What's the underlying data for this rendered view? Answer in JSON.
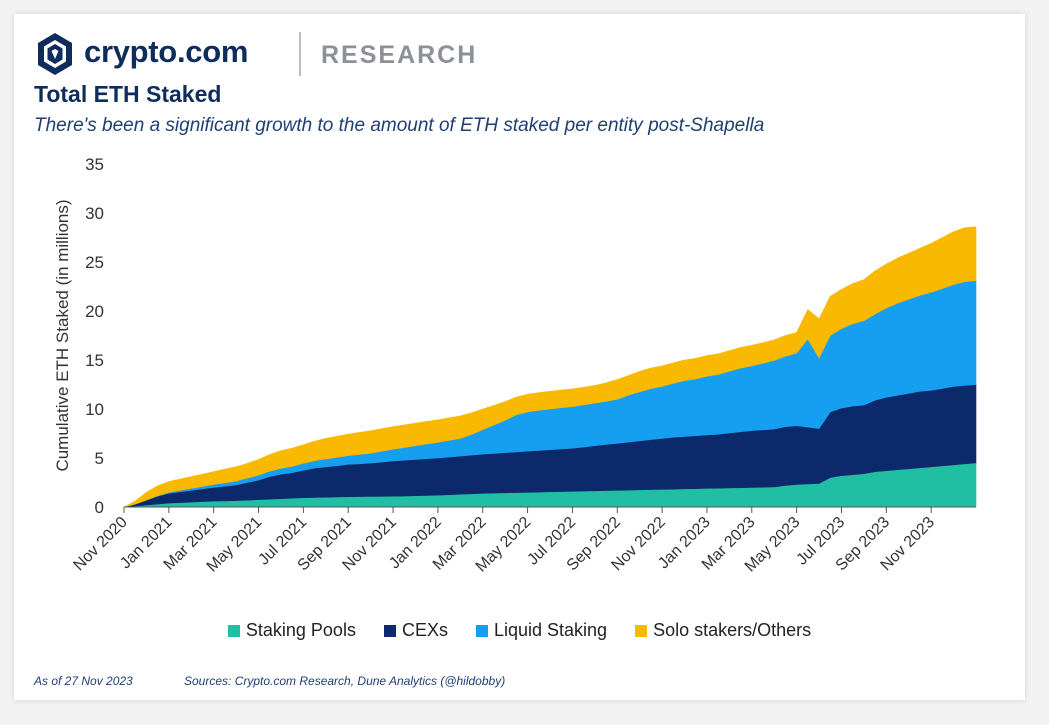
{
  "brand": {
    "name": "crypto.com",
    "division": "RESEARCH"
  },
  "footer": {
    "as_of": "As of 27 Nov 2023",
    "sources": "Sources: Crypto.com Research, Dune Analytics (@hildobby)"
  },
  "chart_data": {
    "type": "area",
    "stacked": true,
    "title": "Total ETH Staked",
    "subtitle": "There's been a significant growth to the amount of ETH staked per entity post-Shapella",
    "xlabel": "",
    "ylabel": "Cumulative ETH Staked (in millions)",
    "ylim": [
      0,
      35
    ],
    "yticks": [
      0,
      5,
      10,
      15,
      20,
      25,
      30,
      35
    ],
    "x_tick_labels": [
      "Nov 2020",
      "Jan 2021",
      "Mar 2021",
      "May 2021",
      "Jul 2021",
      "Sep 2021",
      "Nov 2021",
      "Jan 2022",
      "Mar 2022",
      "May 2022",
      "Jul 2022",
      "Sep 2022",
      "Nov 2022",
      "Jan 2023",
      "Mar 2023",
      "May 2023",
      "Jul 2023",
      "Sep 2023",
      "Nov 2023"
    ],
    "x_months": [
      0,
      0.5,
      1,
      1.5,
      2,
      2.5,
      3,
      3.5,
      4,
      4.5,
      5,
      5.5,
      6,
      6.5,
      7,
      7.5,
      8,
      8.5,
      9,
      9.5,
      10,
      10.5,
      11,
      11.5,
      12,
      12.5,
      13,
      13.5,
      14,
      14.5,
      15,
      15.5,
      16,
      16.5,
      17,
      17.5,
      18,
      18.5,
      19,
      19.5,
      20,
      20.5,
      21,
      21.5,
      22,
      22.5,
      23,
      23.5,
      24,
      24.5,
      25,
      25.5,
      26,
      26.5,
      27,
      27.5,
      28,
      28.5,
      29,
      29.5,
      30,
      30.5,
      31,
      31.5,
      32,
      32.5,
      33,
      33.5,
      34,
      34.5,
      35,
      35.5,
      36,
      36.5,
      37,
      37.5,
      38
    ],
    "series": [
      {
        "name": "Staking Pools",
        "color": "#20bfa3",
        "values": [
          0,
          0.1,
          0.2,
          0.3,
          0.4,
          0.45,
          0.5,
          0.55,
          0.6,
          0.62,
          0.65,
          0.7,
          0.75,
          0.8,
          0.85,
          0.9,
          0.95,
          0.97,
          1.0,
          1.02,
          1.05,
          1.06,
          1.08,
          1.09,
          1.1,
          1.12,
          1.15,
          1.18,
          1.2,
          1.25,
          1.3,
          1.35,
          1.4,
          1.42,
          1.45,
          1.47,
          1.5,
          1.52,
          1.55,
          1.58,
          1.6,
          1.62,
          1.65,
          1.68,
          1.7,
          1.72,
          1.75,
          1.78,
          1.8,
          1.82,
          1.85,
          1.87,
          1.9,
          1.92,
          1.95,
          1.97,
          2.0,
          2.02,
          2.05,
          2.2,
          2.3,
          2.35,
          2.4,
          3.0,
          3.2,
          3.3,
          3.4,
          3.6,
          3.7,
          3.8,
          3.9,
          4.0,
          4.1,
          4.2,
          4.3,
          4.4,
          4.5
        ]
      },
      {
        "name": "CEXs",
        "color": "#0c2a6b",
        "values": [
          0,
          0.2,
          0.5,
          0.8,
          1.0,
          1.1,
          1.2,
          1.3,
          1.4,
          1.5,
          1.6,
          1.8,
          2.0,
          2.3,
          2.5,
          2.6,
          2.8,
          3.0,
          3.1,
          3.2,
          3.3,
          3.35,
          3.4,
          3.5,
          3.6,
          3.65,
          3.7,
          3.75,
          3.8,
          3.85,
          3.9,
          3.95,
          4.0,
          4.05,
          4.1,
          4.15,
          4.2,
          4.25,
          4.3,
          4.35,
          4.4,
          4.5,
          4.6,
          4.7,
          4.8,
          4.9,
          5.0,
          5.1,
          5.2,
          5.3,
          5.35,
          5.4,
          5.45,
          5.5,
          5.6,
          5.7,
          5.8,
          5.85,
          5.9,
          6.0,
          6.0,
          5.8,
          5.6,
          6.7,
          6.9,
          7.0,
          7.0,
          7.3,
          7.5,
          7.6,
          7.7,
          7.8,
          7.8,
          7.9,
          8.0,
          8.0,
          8.0
        ]
      },
      {
        "name": "Liquid Staking",
        "color": "#169ff0",
        "values": [
          0,
          0,
          0,
          0.05,
          0.1,
          0.15,
          0.2,
          0.25,
          0.3,
          0.35,
          0.4,
          0.45,
          0.5,
          0.55,
          0.6,
          0.65,
          0.7,
          0.75,
          0.8,
          0.85,
          0.9,
          0.95,
          1.0,
          1.1,
          1.2,
          1.3,
          1.4,
          1.5,
          1.6,
          1.7,
          1.8,
          2.1,
          2.5,
          2.9,
          3.3,
          3.8,
          4.0,
          4.1,
          4.15,
          4.2,
          4.25,
          4.3,
          4.35,
          4.4,
          4.5,
          4.8,
          5.0,
          5.2,
          5.3,
          5.5,
          5.7,
          5.8,
          6.0,
          6.1,
          6.3,
          6.5,
          6.6,
          6.8,
          7.0,
          7.2,
          7.4,
          9.0,
          7.2,
          7.8,
          8.1,
          8.4,
          8.6,
          8.8,
          9.1,
          9.4,
          9.6,
          9.8,
          10.0,
          10.2,
          10.4,
          10.6,
          10.6
        ]
      },
      {
        "name": "Solo stakers/Others",
        "color": "#f9b900",
        "values": [
          0,
          0.3,
          0.8,
          1.0,
          1.1,
          1.15,
          1.2,
          1.25,
          1.3,
          1.4,
          1.45,
          1.5,
          1.6,
          1.7,
          1.8,
          1.85,
          1.9,
          2.0,
          2.1,
          2.15,
          2.2,
          2.25,
          2.3,
          2.3,
          2.3,
          2.3,
          2.3,
          2.3,
          2.3,
          2.3,
          2.3,
          2.2,
          2.1,
          2.0,
          1.9,
          1.8,
          1.8,
          1.8,
          1.8,
          1.8,
          1.8,
          1.8,
          1.8,
          1.9,
          2.0,
          2.0,
          2.1,
          2.1,
          2.1,
          2.1,
          2.1,
          2.1,
          2.1,
          2.1,
          2.1,
          2.1,
          2.1,
          2.1,
          2.1,
          2.1,
          2.1,
          3.0,
          4.0,
          4.0,
          4.0,
          4.1,
          4.2,
          4.4,
          4.5,
          4.6,
          4.7,
          4.8,
          5.0,
          5.2,
          5.4,
          5.5,
          5.5
        ]
      }
    ]
  }
}
